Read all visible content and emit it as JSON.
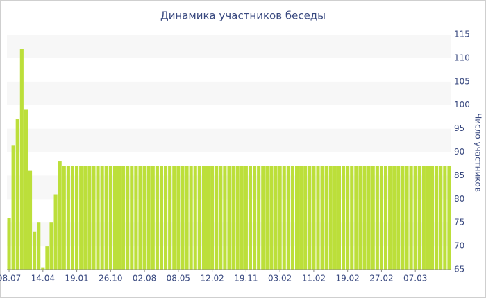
{
  "chart_data": {
    "type": "bar",
    "title": "Динамика участников беседы",
    "y_label": "Число участников",
    "categories": [
      "08.07",
      null,
      null,
      null,
      null,
      null,
      null,
      null,
      "14.04",
      null,
      null,
      null,
      null,
      null,
      null,
      null,
      "19.01",
      null,
      null,
      null,
      null,
      null,
      null,
      null,
      "26.10",
      null,
      null,
      null,
      null,
      null,
      null,
      null,
      "02.08",
      null,
      null,
      null,
      null,
      null,
      null,
      null,
      "08.05",
      null,
      null,
      null,
      null,
      null,
      null,
      null,
      "12.02",
      null,
      null,
      null,
      null,
      null,
      null,
      null,
      "19.11",
      null,
      null,
      null,
      null,
      null,
      null,
      null,
      "03.02",
      null,
      null,
      null,
      null,
      null,
      null,
      null,
      "11.02",
      null,
      null,
      null,
      null,
      null,
      null,
      null,
      "19.02",
      null,
      null,
      null,
      null,
      null,
      null,
      null,
      "27.02",
      null,
      null,
      null,
      null,
      null,
      null,
      null,
      "07.03",
      null,
      null,
      null,
      null,
      null,
      null,
      null,
      null
    ],
    "values": [
      76,
      91.5,
      97,
      112,
      99,
      86,
      73,
      75,
      65.5,
      70,
      75,
      81,
      88,
      87,
      87,
      87,
      87,
      87,
      87,
      87,
      87,
      87,
      87,
      87,
      87,
      87,
      87,
      87,
      87,
      87,
      87,
      87,
      87,
      87,
      87,
      87,
      87,
      87,
      87,
      87,
      87,
      87,
      87,
      87,
      87,
      87,
      87,
      87,
      87,
      87,
      87,
      87,
      87,
      87,
      87,
      87,
      87,
      87,
      87,
      87,
      87,
      87,
      87,
      87,
      87,
      87,
      87,
      87,
      87,
      87,
      87,
      87,
      87,
      87,
      87,
      87,
      87,
      87,
      87,
      87,
      87,
      87,
      87,
      87,
      87,
      87,
      87,
      87,
      87,
      87,
      87,
      87,
      87,
      87,
      87,
      87,
      87,
      87,
      87,
      87,
      87,
      87,
      87,
      87,
      87
    ],
    "color": "#bcdf3a",
    "ylim": [
      65,
      115
    ],
    "yticks": [
      65,
      70,
      75,
      80,
      85,
      90,
      95,
      100,
      105,
      110,
      115
    ],
    "y_axis_side": "right",
    "grid": "bands"
  }
}
